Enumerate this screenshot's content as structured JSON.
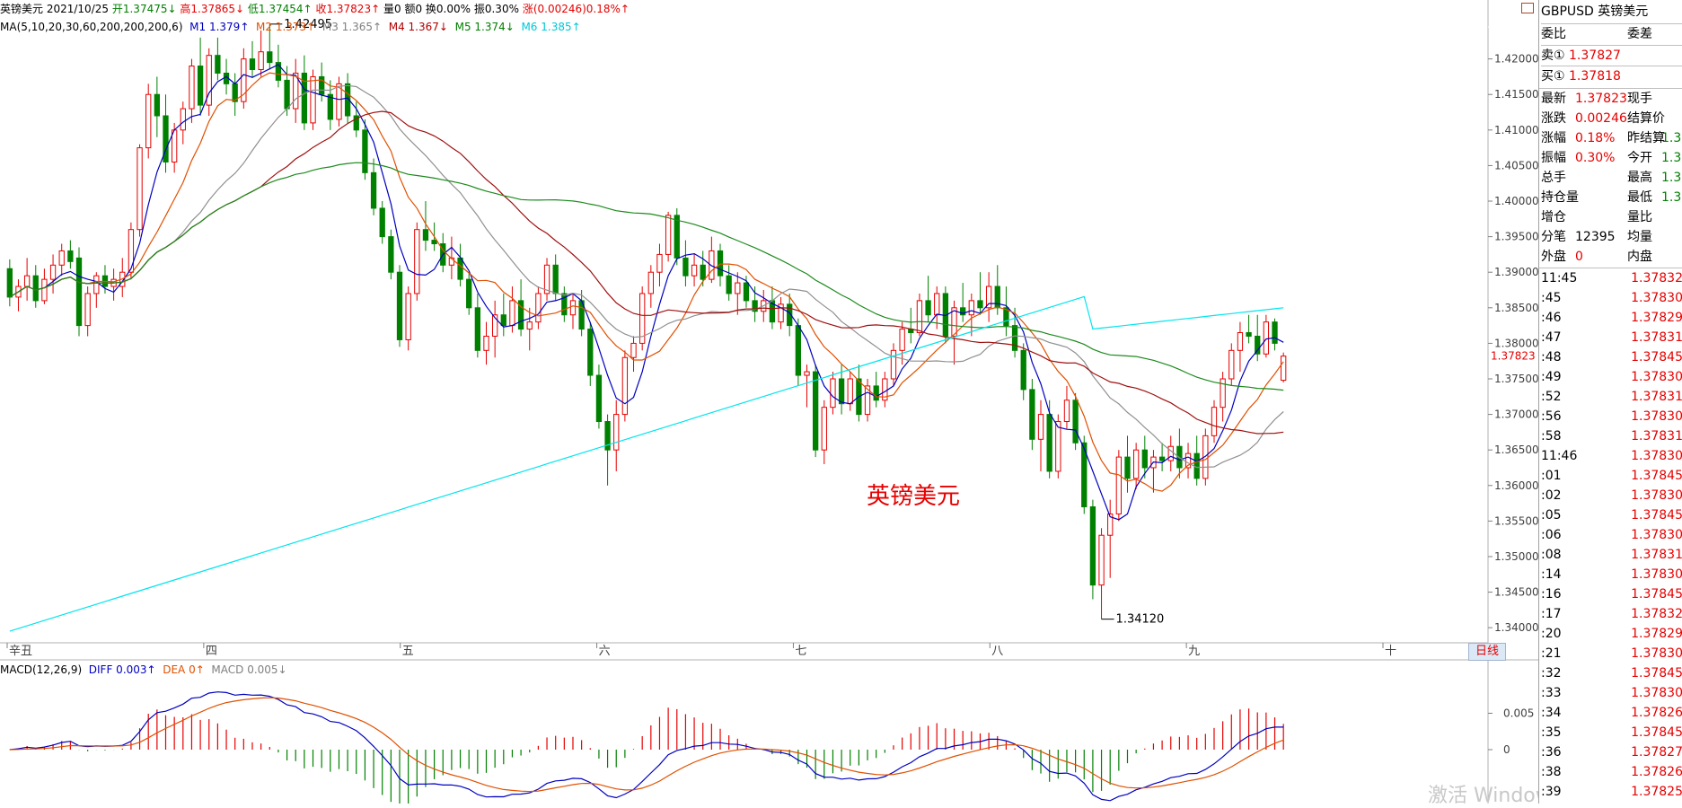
{
  "header": {
    "name": "英镑美元",
    "date": "2021/10/25",
    "open_label": "开",
    "open": "1.37475↓",
    "high_label": "高",
    "high": "1.37865↓",
    "low_label": "低",
    "low": "1.37454↑",
    "close_label": "收",
    "close": "1.37823↑",
    "vol": "量0",
    "amount": "额0",
    "turnover": "换0.00%",
    "amplitude": "振0.30%",
    "change": "涨(0.00246)0.18%↑"
  },
  "ma_line": {
    "label": "MA(5,10,20,30,60,200,200,200,6)",
    "m1": "M1 1.379↑",
    "m2": "M2 1.373↑",
    "m3": "M3 1.365↑",
    "m4": "M4 1.367↓",
    "m5": "M5 1.374↓",
    "m6": "M6 1.385↑"
  },
  "macd_line": {
    "label": "MACD(12,26,9)",
    "diff": "DIFF 0.003↑",
    "dea": "DEA 0↑",
    "macd": "MACD 0.005↓"
  },
  "annotations": {
    "high_mark": "1.42495",
    "low_mark": "1.34120",
    "watermark_title": "英镑美元",
    "win_watermark": "激活 Windows"
  },
  "x_axis_labels": [
    "辛丑",
    "四",
    "五",
    "六",
    "七",
    "八",
    "九",
    "十"
  ],
  "day_line_tab": "日线",
  "current_price_tag": "1.37823",
  "y_axis_labels": [
    "1.42000",
    "1.41500",
    "1.41000",
    "1.40500",
    "1.40000",
    "1.39500",
    "1.39000",
    "1.38500",
    "1.38000",
    "1.37500",
    "1.37000",
    "1.36500",
    "1.36000",
    "1.35500",
    "1.35000",
    "1.34500",
    "1.34000"
  ],
  "macd_axis_labels": [
    "0.005",
    "0"
  ],
  "panel": {
    "title": "GBPUSD 英镑美元",
    "ratio_label": "委比",
    "diff_label": "委差",
    "sell_label": "卖①",
    "sell_price": "1.37827",
    "buy_label": "买①",
    "buy_price": "1.37818",
    "rows": [
      {
        "l": "最新",
        "v": "1.37823",
        "l2": "现手",
        "v2": ""
      },
      {
        "l": "涨跌",
        "v": "0.00246",
        "l2": "结算价",
        "v2": ""
      },
      {
        "l": "涨幅",
        "v": "0.18%",
        "l2": "昨结算",
        "v2": "1.3"
      },
      {
        "l": "振幅",
        "v": "0.30%",
        "l2": "今开",
        "v2": "1.3"
      },
      {
        "l": "总手",
        "v": "",
        "l2": "最高",
        "v2": "1.3"
      },
      {
        "l": "持仓量",
        "v": "",
        "l2": "最低",
        "v2": "1.3"
      },
      {
        "l": "增仓",
        "v": "",
        "l2": "量比",
        "v2": ""
      },
      {
        "l": "分笔",
        "v": "12395",
        "l2": "均量",
        "v2": ""
      },
      {
        "l": "外盘",
        "v": "0",
        "l2": "内盘",
        "v2": ""
      }
    ],
    "ticks": [
      {
        "t": "11:45",
        "p": "1.37832"
      },
      {
        "t": ":45",
        "p": "1.37830"
      },
      {
        "t": ":46",
        "p": "1.37829"
      },
      {
        "t": ":47",
        "p": "1.37831"
      },
      {
        "t": ":48",
        "p": "1.37845"
      },
      {
        "t": ":49",
        "p": "1.37830"
      },
      {
        "t": ":52",
        "p": "1.37831"
      },
      {
        "t": ":56",
        "p": "1.37830"
      },
      {
        "t": ":58",
        "p": "1.37831"
      },
      {
        "t": "11:46",
        "p": "1.37830"
      },
      {
        "t": ":01",
        "p": "1.37845"
      },
      {
        "t": ":02",
        "p": "1.37830"
      },
      {
        "t": ":05",
        "p": "1.37845"
      },
      {
        "t": ":06",
        "p": "1.37830"
      },
      {
        "t": ":08",
        "p": "1.37831"
      },
      {
        "t": ":14",
        "p": "1.37830"
      },
      {
        "t": ":16",
        "p": "1.37845"
      },
      {
        "t": ":17",
        "p": "1.37832"
      },
      {
        "t": ":20",
        "p": "1.37829"
      },
      {
        "t": ":21",
        "p": "1.37830"
      },
      {
        "t": ":32",
        "p": "1.37845"
      },
      {
        "t": ":33",
        "p": "1.37830"
      },
      {
        "t": ":34",
        "p": "1.37826"
      },
      {
        "t": ":35",
        "p": "1.37845"
      },
      {
        "t": ":36",
        "p": "1.37827"
      },
      {
        "t": ":38",
        "p": "1.37826"
      },
      {
        "t": ":39",
        "p": "1.37825"
      }
    ]
  },
  "colors": {
    "up": "#e60000",
    "down": "#008000",
    "ma1": "#0000c0",
    "ma2": "#e05000",
    "ma3": "#909090",
    "ma4": "#a01010",
    "ma5": "#1c8a1c",
    "ma6": "#00e5ee",
    "diff": "#0000c0",
    "dea": "#e05000"
  },
  "chart_data": {
    "type": "candlestick",
    "instrument": "GBPUSD",
    "ylim": [
      1.338,
      1.4245
    ],
    "extremes": {
      "high": 1.42495,
      "low": 1.3412
    },
    "candles": [
      [
        1.3905,
        1.3918,
        1.3852,
        1.3865
      ],
      [
        1.3865,
        1.389,
        1.3845,
        1.388
      ],
      [
        1.388,
        1.392,
        1.386,
        1.3895
      ],
      [
        1.3895,
        1.391,
        1.385,
        1.386
      ],
      [
        1.386,
        1.3905,
        1.3855,
        1.389
      ],
      [
        1.389,
        1.3925,
        1.387,
        1.391
      ],
      [
        1.391,
        1.394,
        1.3895,
        1.393
      ],
      [
        1.393,
        1.3945,
        1.3905,
        1.3915
      ],
      [
        1.392,
        1.3935,
        1.381,
        1.3825
      ],
      [
        1.3825,
        1.388,
        1.381,
        1.387
      ],
      [
        1.387,
        1.39,
        1.385,
        1.3895
      ],
      [
        1.3895,
        1.391,
        1.387,
        1.388
      ],
      [
        1.388,
        1.3905,
        1.386,
        1.389
      ],
      [
        1.388,
        1.392,
        1.3865,
        1.39
      ],
      [
        1.39,
        1.397,
        1.389,
        1.396
      ],
      [
        1.396,
        1.408,
        1.395,
        1.4075
      ],
      [
        1.4075,
        1.4165,
        1.406,
        1.415
      ],
      [
        1.415,
        1.4175,
        1.409,
        1.412
      ],
      [
        1.412,
        1.415,
        1.404,
        1.4055
      ],
      [
        1.4055,
        1.411,
        1.404,
        1.41
      ],
      [
        1.41,
        1.414,
        1.408,
        1.413
      ],
      [
        1.413,
        1.42,
        1.411,
        1.419
      ],
      [
        1.419,
        1.423,
        1.412,
        1.4135
      ],
      [
        1.4135,
        1.4215,
        1.412,
        1.4205
      ],
      [
        1.4205,
        1.423,
        1.417,
        1.418
      ],
      [
        1.418,
        1.42,
        1.415,
        1.4165
      ],
      [
        1.4165,
        1.418,
        1.412,
        1.414
      ],
      [
        1.414,
        1.4215,
        1.413,
        1.42
      ],
      [
        1.42,
        1.4225,
        1.4175,
        1.4185
      ],
      [
        1.4185,
        1.424,
        1.4175,
        1.421
      ],
      [
        1.421,
        1.4249,
        1.4185,
        1.4195
      ],
      [
        1.4195,
        1.422,
        1.416,
        1.417
      ],
      [
        1.417,
        1.419,
        1.412,
        1.413
      ],
      [
        1.413,
        1.42,
        1.411,
        1.418
      ],
      [
        1.418,
        1.4205,
        1.41,
        1.411
      ],
      [
        1.411,
        1.4185,
        1.41,
        1.4175
      ],
      [
        1.4175,
        1.4195,
        1.414,
        1.415
      ],
      [
        1.415,
        1.417,
        1.41,
        1.4115
      ],
      [
        1.4115,
        1.4175,
        1.4105,
        1.4165
      ],
      [
        1.4165,
        1.418,
        1.411,
        1.412
      ],
      [
        1.412,
        1.414,
        1.409,
        1.41
      ],
      [
        1.41,
        1.4115,
        1.403,
        1.404
      ],
      [
        1.404,
        1.406,
        1.398,
        1.399
      ],
      [
        1.399,
        1.4,
        1.394,
        1.395
      ],
      [
        1.395,
        1.396,
        1.389,
        1.39
      ],
      [
        1.39,
        1.391,
        1.3795,
        1.3805
      ],
      [
        1.3805,
        1.388,
        1.379,
        1.387
      ],
      [
        1.387,
        1.397,
        1.386,
        1.396
      ],
      [
        1.396,
        1.4,
        1.393,
        1.3945
      ],
      [
        1.3945,
        1.397,
        1.393,
        1.394
      ],
      [
        1.394,
        1.3955,
        1.39,
        1.391
      ],
      [
        1.391,
        1.395,
        1.389,
        1.392
      ],
      [
        1.392,
        1.394,
        1.388,
        1.389
      ],
      [
        1.389,
        1.39,
        1.384,
        1.385
      ],
      [
        1.385,
        1.387,
        1.378,
        1.379
      ],
      [
        1.379,
        1.383,
        1.377,
        1.381
      ],
      [
        1.381,
        1.386,
        1.378,
        1.384
      ],
      [
        1.384,
        1.387,
        1.381,
        1.3825
      ],
      [
        1.3825,
        1.388,
        1.3815,
        1.386
      ],
      [
        1.386,
        1.389,
        1.381,
        1.382
      ],
      [
        1.382,
        1.385,
        1.379,
        1.383
      ],
      [
        1.383,
        1.388,
        1.382,
        1.387
      ],
      [
        1.387,
        1.392,
        1.386,
        1.391
      ],
      [
        1.391,
        1.3925,
        1.386,
        1.387
      ],
      [
        1.387,
        1.388,
        1.383,
        1.384
      ],
      [
        1.384,
        1.387,
        1.382,
        1.386
      ],
      [
        1.386,
        1.3875,
        1.381,
        1.382
      ],
      [
        1.382,
        1.383,
        1.374,
        1.3755
      ],
      [
        1.3755,
        1.377,
        1.368,
        1.369
      ],
      [
        1.369,
        1.37,
        1.36,
        1.365
      ],
      [
        1.365,
        1.372,
        1.362,
        1.37
      ],
      [
        1.37,
        1.379,
        1.369,
        1.378
      ],
      [
        1.378,
        1.381,
        1.376,
        1.38
      ],
      [
        1.38,
        1.388,
        1.379,
        1.387
      ],
      [
        1.387,
        1.391,
        1.385,
        1.39
      ],
      [
        1.39,
        1.394,
        1.388,
        1.3925
      ],
      [
        1.3925,
        1.3985,
        1.3915,
        1.398
      ],
      [
        1.398,
        1.399,
        1.391,
        1.392
      ],
      [
        1.392,
        1.3945,
        1.388,
        1.3895
      ],
      [
        1.3895,
        1.3925,
        1.388,
        1.391
      ],
      [
        1.391,
        1.393,
        1.388,
        1.389
      ],
      [
        1.389,
        1.395,
        1.3885,
        1.393
      ],
      [
        1.393,
        1.394,
        1.388,
        1.3895
      ],
      [
        1.3895,
        1.391,
        1.386,
        1.387
      ],
      [
        1.387,
        1.39,
        1.384,
        1.3885
      ],
      [
        1.3885,
        1.3895,
        1.385,
        1.386
      ],
      [
        1.386,
        1.388,
        1.383,
        1.3845
      ],
      [
        1.3845,
        1.3875,
        1.383,
        1.386
      ],
      [
        1.386,
        1.388,
        1.382,
        1.383
      ],
      [
        1.383,
        1.3865,
        1.382,
        1.3855
      ],
      [
        1.3855,
        1.387,
        1.381,
        1.3825
      ],
      [
        1.3825,
        1.3835,
        1.374,
        1.3755
      ],
      [
        1.3755,
        1.377,
        1.371,
        1.376
      ],
      [
        1.376,
        1.377,
        1.364,
        1.365
      ],
      [
        1.365,
        1.372,
        1.363,
        1.371
      ],
      [
        1.371,
        1.376,
        1.37,
        1.375
      ],
      [
        1.375,
        1.377,
        1.37,
        1.3715
      ],
      [
        1.3715,
        1.376,
        1.3705,
        1.375
      ],
      [
        1.375,
        1.377,
        1.369,
        1.37
      ],
      [
        1.37,
        1.375,
        1.369,
        1.374
      ],
      [
        1.374,
        1.376,
        1.371,
        1.372
      ],
      [
        1.372,
        1.376,
        1.371,
        1.375
      ],
      [
        1.375,
        1.38,
        1.374,
        1.379
      ],
      [
        1.379,
        1.383,
        1.377,
        1.382
      ],
      [
        1.382,
        1.385,
        1.38,
        1.3815
      ],
      [
        1.3815,
        1.387,
        1.381,
        1.386
      ],
      [
        1.386,
        1.3895,
        1.383,
        1.384
      ],
      [
        1.384,
        1.388,
        1.382,
        1.387
      ],
      [
        1.387,
        1.388,
        1.38,
        1.381
      ],
      [
        1.381,
        1.386,
        1.377,
        1.385
      ],
      [
        1.385,
        1.3885,
        1.383,
        1.384
      ],
      [
        1.384,
        1.387,
        1.381,
        1.386
      ],
      [
        1.386,
        1.39,
        1.384,
        1.385
      ],
      [
        1.385,
        1.39,
        1.383,
        1.388
      ],
      [
        1.388,
        1.391,
        1.384,
        1.385
      ],
      [
        1.385,
        1.388,
        1.381,
        1.3825
      ],
      [
        1.3825,
        1.385,
        1.378,
        1.379
      ],
      [
        1.379,
        1.38,
        1.372,
        1.3735
      ],
      [
        1.3735,
        1.375,
        1.365,
        1.3665
      ],
      [
        1.3665,
        1.372,
        1.362,
        1.37
      ],
      [
        1.37,
        1.372,
        1.361,
        1.362
      ],
      [
        1.362,
        1.37,
        1.361,
        1.369
      ],
      [
        1.369,
        1.374,
        1.368,
        1.372
      ],
      [
        1.372,
        1.373,
        1.365,
        1.366
      ],
      [
        1.366,
        1.367,
        1.356,
        1.357
      ],
      [
        1.357,
        1.358,
        1.344,
        1.346
      ],
      [
        1.346,
        1.354,
        1.3412,
        1.353
      ],
      [
        1.353,
        1.358,
        1.347,
        1.356
      ],
      [
        1.356,
        1.365,
        1.355,
        1.364
      ],
      [
        1.364,
        1.367,
        1.359,
        1.361
      ],
      [
        1.361,
        1.366,
        1.3595,
        1.365
      ],
      [
        1.365,
        1.367,
        1.361,
        1.3625
      ],
      [
        1.3625,
        1.365,
        1.359,
        1.364
      ],
      [
        1.364,
        1.366,
        1.362,
        1.3635
      ],
      [
        1.3635,
        1.367,
        1.362,
        1.3655
      ],
      [
        1.3655,
        1.368,
        1.361,
        1.3625
      ],
      [
        1.3625,
        1.366,
        1.361,
        1.3645
      ],
      [
        1.3645,
        1.367,
        1.36,
        1.361
      ],
      [
        1.361,
        1.368,
        1.36,
        1.367
      ],
      [
        1.367,
        1.372,
        1.366,
        1.371
      ],
      [
        1.371,
        1.376,
        1.369,
        1.375
      ],
      [
        1.375,
        1.38,
        1.374,
        1.379
      ],
      [
        1.379,
        1.383,
        1.376,
        1.3815
      ],
      [
        1.3815,
        1.384,
        1.38,
        1.381
      ],
      [
        1.381,
        1.384,
        1.3775,
        1.3785
      ],
      [
        1.3785,
        1.384,
        1.378,
        1.383
      ],
      [
        1.383,
        1.3835,
        1.379,
        1.38
      ],
      [
        1.3748,
        1.3787,
        1.3745,
        1.3782
      ]
    ],
    "ma_overlays": [
      "MA5",
      "MA10",
      "MA20",
      "MA30",
      "MA60",
      "MA200"
    ],
    "macd": {
      "diff_last": 0.003,
      "dea_last": 0,
      "macd_last": 0.005
    }
  }
}
